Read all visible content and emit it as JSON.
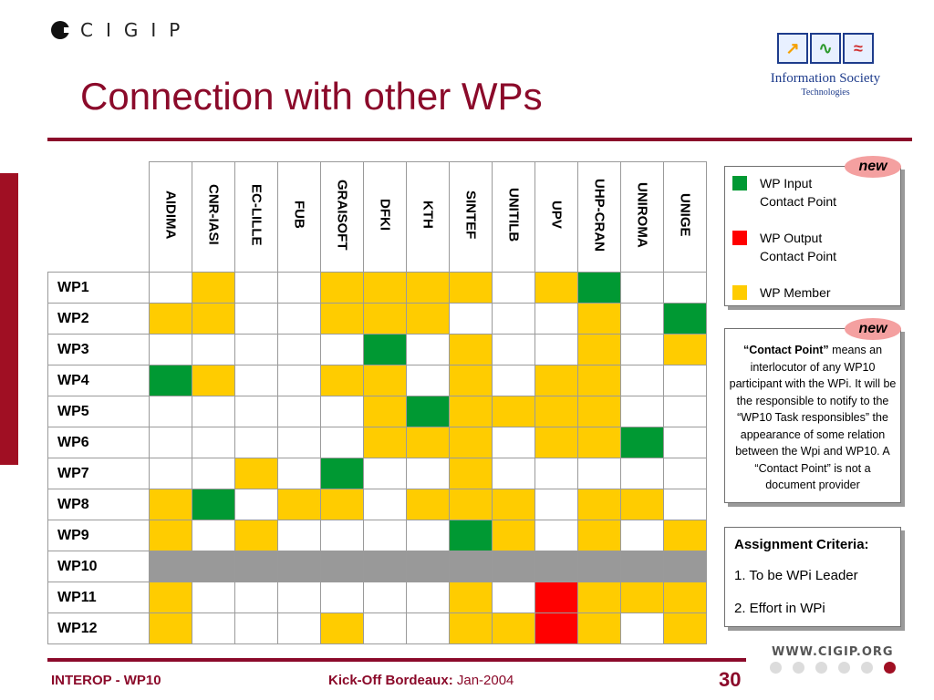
{
  "header": {
    "logo_text": "CIGIP",
    "title": "Connection with other WPs",
    "ist_logo_line1": "Information Society",
    "ist_logo_line2": "Technologies"
  },
  "colors": {
    "accent": "#8b0a2a",
    "member": "#ffcc00",
    "input_contact": "#009933",
    "output_contact": "#ff0000",
    "wp10_row": "#999999"
  },
  "matrix": {
    "columns": [
      "AIDIMA",
      "CNR-IASI",
      "EC-LILLE",
      "FUB",
      "GRAISOFT",
      "DFKI",
      "KTH",
      "SINTEF",
      "UNITILB",
      "UPV",
      "UHP-CRAN",
      "UNIROMA",
      "UNIGE"
    ],
    "rows": [
      {
        "label": "WP1",
        "cells": [
          "W",
          "M",
          "W",
          "W",
          "M",
          "M",
          "M",
          "M",
          "W",
          "M",
          "I",
          "W",
          "W"
        ]
      },
      {
        "label": "WP2",
        "cells": [
          "M",
          "M",
          "W",
          "W",
          "M",
          "M",
          "M",
          "W",
          "W",
          "W",
          "M",
          "W",
          "I"
        ]
      },
      {
        "label": "WP3",
        "cells": [
          "W",
          "W",
          "W",
          "W",
          "W",
          "I",
          "W",
          "M",
          "W",
          "W",
          "M",
          "W",
          "M"
        ]
      },
      {
        "label": "WP4",
        "cells": [
          "I",
          "M",
          "W",
          "W",
          "M",
          "M",
          "W",
          "M",
          "W",
          "M",
          "M",
          "W",
          "W"
        ]
      },
      {
        "label": "WP5",
        "cells": [
          "W",
          "W",
          "W",
          "W",
          "W",
          "M",
          "I",
          "M",
          "M",
          "M",
          "M",
          "W",
          "W"
        ]
      },
      {
        "label": "WP6",
        "cells": [
          "W",
          "W",
          "W",
          "W",
          "W",
          "M",
          "M",
          "M",
          "W",
          "M",
          "M",
          "I",
          "W"
        ]
      },
      {
        "label": "WP7",
        "cells": [
          "W",
          "W",
          "M",
          "W",
          "I",
          "W",
          "W",
          "M",
          "W",
          "W",
          "W",
          "W",
          "W"
        ]
      },
      {
        "label": "WP8",
        "cells": [
          "M",
          "I",
          "W",
          "M",
          "M",
          "W",
          "M",
          "M",
          "M",
          "W",
          "M",
          "M",
          "W"
        ]
      },
      {
        "label": "WP9",
        "cells": [
          "M",
          "W",
          "M",
          "W",
          "W",
          "W",
          "W",
          "I",
          "M",
          "W",
          "M",
          "W",
          "M"
        ]
      },
      {
        "label": "WP10",
        "cells": [
          "G",
          "G",
          "G",
          "G",
          "G",
          "G",
          "G",
          "G",
          "G",
          "G",
          "G",
          "G",
          "G"
        ]
      },
      {
        "label": "WP11",
        "cells": [
          "M",
          "W",
          "W",
          "W",
          "W",
          "W",
          "W",
          "M",
          "W",
          "O",
          "M",
          "M",
          "M"
        ]
      },
      {
        "label": "WP12",
        "cells": [
          "M",
          "W",
          "W",
          "W",
          "M",
          "W",
          "W",
          "M",
          "M",
          "O",
          "M",
          "W",
          "M"
        ]
      }
    ]
  },
  "legend": {
    "input_line1": "WP Input",
    "input_line2": "Contact Point",
    "output_line1": "WP Output",
    "output_line2": "Contact Point",
    "member": "WP Member",
    "new_badge": "new"
  },
  "note": {
    "new_badge": "new",
    "bold_lead": "“Contact Point”",
    "text": " means an interlocutor of any WP10 participant with the WPi. It will be the responsible to notify to the “WP10 Task responsibles” the appearance of some relation between the Wpi and WP10. A “Contact Point” is not a document provider"
  },
  "criteria": {
    "title": "Assignment Criteria:",
    "items": [
      "1. To be WPi Leader",
      "2. Effort in WPi"
    ]
  },
  "footer": {
    "left": "INTEROP - WP10",
    "event_label": "Kick-Off Bordeaux:",
    "date": " Jan-2004",
    "page_number": "30",
    "website": "WWW.CIGIP.ORG"
  }
}
